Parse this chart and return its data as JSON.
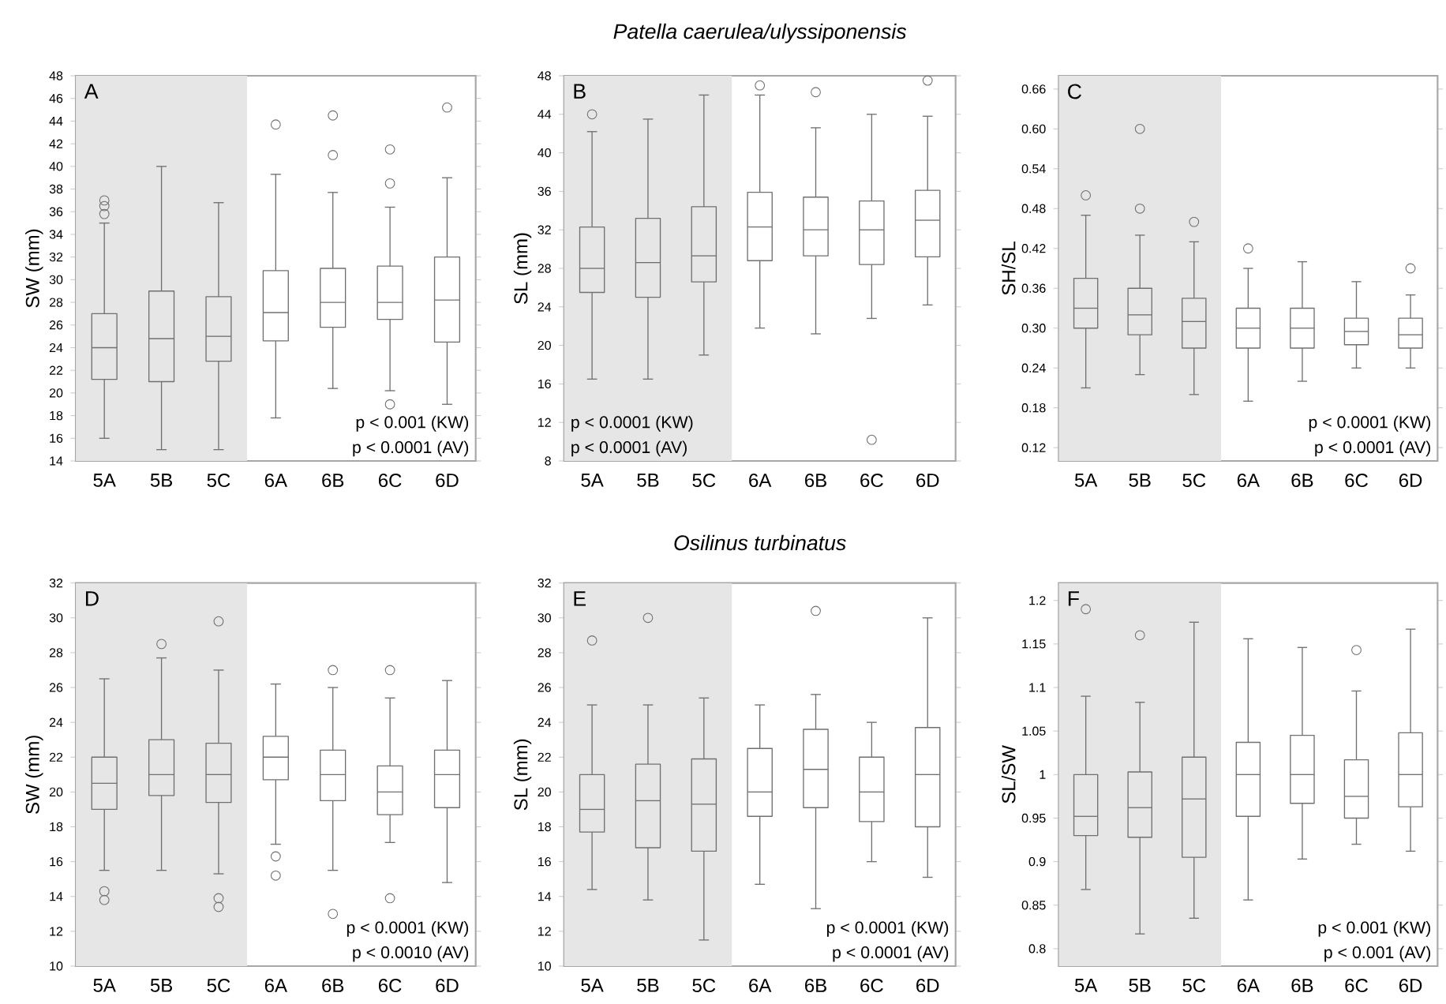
{
  "chart_data": [
    {
      "type": "box",
      "ylabel": "SW (mm)",
      "categories": [
        "5A",
        "5B",
        "5C",
        "6A",
        "6B",
        "6C",
        "6D"
      ],
      "color": "#707070",
      "marker": "circle",
      "ylim": [
        14,
        48
      ],
      "yticks": [
        14,
        16,
        18,
        20,
        22,
        24,
        26,
        28,
        30,
        32,
        34,
        36,
        38,
        40,
        42,
        44,
        46,
        48
      ],
      "bands": [
        {
          "axis": "x",
          "from": "5A",
          "to": "5C",
          "color": "#e6e6e6"
        }
      ],
      "annotations": [
        "A",
        "p < 0.001 (KW)",
        "p < 0.0001 (AV)"
      ],
      "boxes": [
        {
          "low": 16,
          "q1": 21.2,
          "median": 24,
          "q3": 27,
          "high": 35,
          "outliers": [
            35.8,
            36.5,
            37
          ]
        },
        {
          "low": 15,
          "q1": 21,
          "median": 24.8,
          "q3": 29,
          "high": 40
        },
        {
          "low": 15,
          "q1": 22.8,
          "median": 25,
          "q3": 28.5,
          "high": 36.8
        },
        {
          "low": 17.8,
          "q1": 24.6,
          "median": 27.1,
          "q3": 30.8,
          "high": 39.3,
          "outliers": [
            43.7
          ]
        },
        {
          "low": 20.4,
          "q1": 25.8,
          "median": 28,
          "q3": 31,
          "high": 37.7,
          "outliers": [
            41,
            44.5
          ]
        },
        {
          "low": 20.2,
          "q1": 26.5,
          "median": 28,
          "q3": 31.2,
          "high": 36.4,
          "outliers": [
            19,
            38.5,
            41.5
          ]
        },
        {
          "low": 19,
          "q1": 24.5,
          "median": 28.2,
          "q3": 32,
          "high": 39,
          "outliers": [
            45.2
          ]
        }
      ]
    },
    {
      "type": "box",
      "title": "Patella caerulea/ulyssiponensis",
      "ylabel": "SL (mm)",
      "categories": [
        "5A",
        "5B",
        "5C",
        "6A",
        "6B",
        "6C",
        "6D"
      ],
      "color": "#707070",
      "marker": "circle",
      "ylim": [
        8,
        48
      ],
      "yticks": [
        8,
        12,
        16,
        20,
        24,
        28,
        32,
        36,
        40,
        44,
        48
      ],
      "bands": [
        {
          "axis": "x",
          "from": "5A",
          "to": "5C",
          "color": "#e6e6e6"
        }
      ],
      "annotations": [
        "B",
        "p < 0.0001 (KW)",
        "p < 0.0001 (AV)"
      ],
      "boxes": [
        {
          "low": 16.5,
          "q1": 25.5,
          "median": 28,
          "q3": 32.3,
          "high": 42.2,
          "outliers": [
            44
          ]
        },
        {
          "low": 16.5,
          "q1": 25,
          "median": 28.6,
          "q3": 33.2,
          "high": 43.5
        },
        {
          "low": 19,
          "q1": 26.6,
          "median": 29.3,
          "q3": 34.4,
          "high": 46
        },
        {
          "low": 21.8,
          "q1": 28.8,
          "median": 32.3,
          "q3": 35.9,
          "high": 46,
          "outliers": [
            47
          ]
        },
        {
          "low": 21.2,
          "q1": 29.3,
          "median": 32,
          "q3": 35.4,
          "high": 42.6,
          "outliers": [
            46.3
          ]
        },
        {
          "low": 22.8,
          "q1": 28.4,
          "median": 32,
          "q3": 35,
          "high": 44,
          "outliers": [
            10.2
          ]
        },
        {
          "low": 24.2,
          "q1": 29.2,
          "median": 33,
          "q3": 36.1,
          "high": 43.8,
          "outliers": [
            47.5
          ]
        }
      ]
    },
    {
      "type": "box",
      "ylabel": "SH/SL",
      "categories": [
        "5A",
        "5B",
        "5C",
        "6A",
        "6B",
        "6C",
        "6D"
      ],
      "color": "#707070",
      "marker": "circle",
      "ylim": [
        0.1,
        0.68
      ],
      "yticks": [
        0.12,
        0.18,
        0.24,
        {
          "value": 0.3,
          "label": "0.30"
        },
        0.36,
        0.42,
        0.48,
        0.54,
        {
          "value": 0.6,
          "label": "0.60"
        },
        0.66
      ],
      "bands": [
        {
          "axis": "x",
          "from": "5A",
          "to": "5C",
          "color": "#e6e6e6"
        }
      ],
      "annotations": [
        "C",
        "p < 0.0001 (KW)",
        "p < 0.0001 (AV)"
      ],
      "boxes": [
        {
          "low": 0.21,
          "q1": 0.3,
          "median": 0.33,
          "q3": 0.375,
          "high": 0.47,
          "outliers": [
            0.5
          ]
        },
        {
          "low": 0.23,
          "q1": 0.29,
          "median": 0.32,
          "q3": 0.36,
          "high": 0.44,
          "outliers": [
            0.48,
            0.6
          ]
        },
        {
          "low": 0.2,
          "q1": 0.27,
          "median": 0.31,
          "q3": 0.345,
          "high": 0.43,
          "outliers": [
            0.46
          ]
        },
        {
          "low": 0.19,
          "q1": 0.27,
          "median": 0.3,
          "q3": 0.33,
          "high": 0.39,
          "outliers": [
            0.42
          ]
        },
        {
          "low": 0.22,
          "q1": 0.27,
          "median": 0.3,
          "q3": 0.33,
          "high": 0.4
        },
        {
          "low": 0.24,
          "q1": 0.275,
          "median": 0.295,
          "q3": 0.315,
          "high": 0.37
        },
        {
          "low": 0.24,
          "q1": 0.27,
          "median": 0.29,
          "q3": 0.315,
          "high": 0.35,
          "outliers": [
            0.39
          ]
        }
      ]
    },
    {
      "type": "box",
      "ylabel": "SW (mm)",
      "categories": [
        "5A",
        "5B",
        "5C",
        "6A",
        "6B",
        "6C",
        "6D"
      ],
      "color": "#707070",
      "marker": "circle",
      "ylim": [
        10,
        32
      ],
      "yticks": [
        10,
        12,
        14,
        16,
        18,
        20,
        22,
        24,
        26,
        28,
        30,
        32
      ],
      "bands": [
        {
          "axis": "x",
          "from": "5A",
          "to": "5C",
          "color": "#e6e6e6"
        }
      ],
      "annotations": [
        "D",
        "p < 0.0001 (KW)",
        "p < 0.0010 (AV)"
      ],
      "boxes": [
        {
          "low": 15.5,
          "q1": 19,
          "median": 20.5,
          "q3": 22,
          "high": 26.5,
          "outliers": [
            13.8,
            14.3
          ]
        },
        {
          "low": 15.5,
          "q1": 19.8,
          "median": 21,
          "q3": 23,
          "high": 27.7,
          "outliers": [
            28.5
          ]
        },
        {
          "low": 15.3,
          "q1": 19.4,
          "median": 21,
          "q3": 22.8,
          "high": 27,
          "outliers": [
            13.4,
            13.9,
            29.8
          ]
        },
        {
          "low": 17,
          "q1": 20.7,
          "median": 22,
          "q3": 23.2,
          "high": 26.2,
          "outliers": [
            15.2,
            16.3
          ]
        },
        {
          "low": 15.5,
          "q1": 19.5,
          "median": 21,
          "q3": 22.4,
          "high": 26,
          "outliers": [
            13,
            27
          ]
        },
        {
          "low": 17.1,
          "q1": 18.7,
          "median": 20,
          "q3": 21.5,
          "high": 25.4,
          "outliers": [
            13.9,
            27
          ]
        },
        {
          "low": 14.8,
          "q1": 19.1,
          "median": 21,
          "q3": 22.4,
          "high": 26.4
        }
      ]
    },
    {
      "type": "box",
      "title": "Osilinus turbinatus",
      "ylabel": "SL (mm)",
      "categories": [
        "5A",
        "5B",
        "5C",
        "6A",
        "6B",
        "6C",
        "6D"
      ],
      "color": "#707070",
      "marker": "circle",
      "ylim": [
        10,
        32
      ],
      "yticks": [
        10,
        12,
        14,
        16,
        18,
        20,
        22,
        24,
        26,
        28,
        30,
        32
      ],
      "bands": [
        {
          "axis": "x",
          "from": "5A",
          "to": "5C",
          "color": "#e6e6e6"
        }
      ],
      "annotations": [
        "E",
        "p < 0.0001 (KW)",
        "p < 0.0001 (AV)"
      ],
      "boxes": [
        {
          "low": 14.4,
          "q1": 17.7,
          "median": 19,
          "q3": 21,
          "high": 25,
          "outliers": [
            28.7
          ]
        },
        {
          "low": 13.8,
          "q1": 16.8,
          "median": 19.5,
          "q3": 21.6,
          "high": 25,
          "outliers": [
            30
          ]
        },
        {
          "low": 11.5,
          "q1": 16.6,
          "median": 19.3,
          "q3": 21.9,
          "high": 25.4
        },
        {
          "low": 14.7,
          "q1": 18.6,
          "median": 20,
          "q3": 22.5,
          "high": 25
        },
        {
          "low": 13.3,
          "q1": 19.1,
          "median": 21.3,
          "q3": 23.6,
          "high": 25.6,
          "outliers": [
            30.4
          ]
        },
        {
          "low": 16,
          "q1": 18.3,
          "median": 20,
          "q3": 22,
          "high": 24
        },
        {
          "low": 15.1,
          "q1": 18,
          "median": 21,
          "q3": 23.7,
          "high": 30
        }
      ]
    },
    {
      "type": "box",
      "ylabel": "SL/SW",
      "categories": [
        "5A",
        "5B",
        "5C",
        "6A",
        "6B",
        "6C",
        "6D"
      ],
      "color": "#707070",
      "marker": "circle",
      "ylim": [
        0.78,
        1.22
      ],
      "yticks": [
        0.8,
        0.85,
        0.9,
        0.95,
        1,
        1.05,
        1.1,
        1.15,
        1.2
      ],
      "bands": [
        {
          "axis": "x",
          "from": "5A",
          "to": "5C",
          "color": "#e6e6e6"
        }
      ],
      "annotations": [
        "F",
        "p < 0.001 (KW)",
        "p < 0.001 (AV)"
      ],
      "boxes": [
        {
          "low": 0.868,
          "q1": 0.93,
          "median": 0.952,
          "q3": 1.0,
          "high": 1.09,
          "outliers": [
            1.19
          ]
        },
        {
          "low": 0.817,
          "q1": 0.928,
          "median": 0.962,
          "q3": 1.003,
          "high": 1.083,
          "outliers": [
            1.16
          ]
        },
        {
          "low": 0.835,
          "q1": 0.905,
          "median": 0.972,
          "q3": 1.02,
          "high": 1.175
        },
        {
          "low": 0.856,
          "q1": 0.952,
          "median": 1.0,
          "q3": 1.037,
          "high": 1.156
        },
        {
          "low": 0.903,
          "q1": 0.967,
          "median": 1.0,
          "q3": 1.045,
          "high": 1.146
        },
        {
          "low": 0.92,
          "q1": 0.95,
          "median": 0.975,
          "q3": 1.017,
          "high": 1.096,
          "outliers": [
            1.143
          ]
        },
        {
          "low": 0.912,
          "q1": 0.963,
          "median": 1.0,
          "q3": 1.048,
          "high": 1.167
        }
      ]
    }
  ]
}
